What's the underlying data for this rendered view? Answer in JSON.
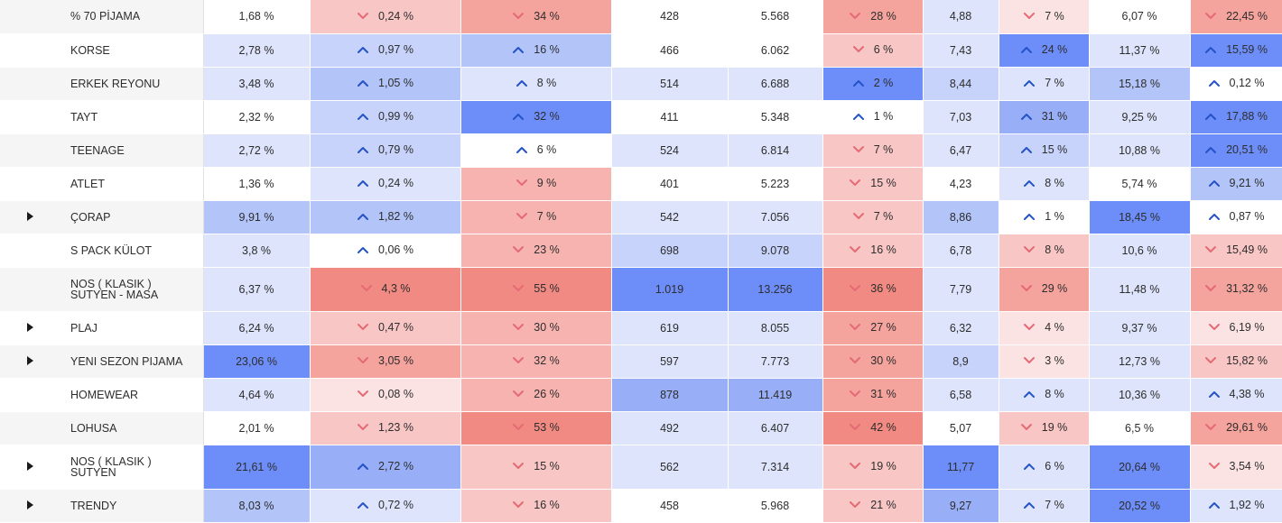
{
  "colors": {
    "up_arrow": "#2452c8",
    "down_arrow": "#e56a74",
    "blue_scale": [
      "#dde4fb",
      "#c7d3fa",
      "#b3c4f9",
      "#98aff8",
      "#6d8ef9"
    ],
    "red_scale": [
      "#fbe3e3",
      "#f8c6c5",
      "#f7b3b0",
      "#f4a39d",
      "#f08a82"
    ],
    "neutral": "#ffffff"
  },
  "icons": {
    "up": "chevron-up-icon",
    "down": "chevron-down-icon",
    "expand": "triangle-right-icon"
  },
  "rows": [
    {
      "expandable": false,
      "label": [
        "% 70 PİJAMA"
      ],
      "cells": [
        {
          "text": "1,68 %",
          "bg": "#ffffff"
        },
        {
          "text": "0,24 %",
          "dir": "down",
          "bg": "#f8c6c5"
        },
        {
          "text": "34 %",
          "dir": "down",
          "bg": "#f4a39d"
        },
        {
          "text": "428",
          "bg": "#ffffff"
        },
        {
          "text": "5.568",
          "bg": "#ffffff"
        },
        {
          "text": "28 %",
          "dir": "down",
          "bg": "#f4a39d"
        },
        {
          "text": "4,88",
          "bg": "#dde4fb"
        },
        {
          "text": "7 %",
          "dir": "down",
          "bg": "#fbe3e3"
        },
        {
          "text": "6,07 %",
          "bg": "#ffffff"
        },
        {
          "text": "22,45 %",
          "dir": "down",
          "bg": "#f4a39d"
        }
      ]
    },
    {
      "expandable": false,
      "label": [
        "KORSE"
      ],
      "cells": [
        {
          "text": "2,78 %",
          "bg": "#dde4fb"
        },
        {
          "text": "0,97 %",
          "dir": "up",
          "bg": "#c7d3fa"
        },
        {
          "text": "16 %",
          "dir": "up",
          "bg": "#b3c4f9"
        },
        {
          "text": "466",
          "bg": "#ffffff"
        },
        {
          "text": "6.062",
          "bg": "#ffffff"
        },
        {
          "text": "6 %",
          "dir": "down",
          "bg": "#f8c6c5"
        },
        {
          "text": "7,43",
          "bg": "#dde4fb"
        },
        {
          "text": "24 %",
          "dir": "up",
          "bg": "#6d8ef9"
        },
        {
          "text": "11,37 %",
          "bg": "#dde4fb"
        },
        {
          "text": "15,59 %",
          "dir": "up",
          "bg": "#6d8ef9"
        }
      ]
    },
    {
      "expandable": false,
      "label": [
        "ERKEK REYONU"
      ],
      "cells": [
        {
          "text": "3,48 %",
          "bg": "#dde4fb"
        },
        {
          "text": "1,05 %",
          "dir": "up",
          "bg": "#b3c4f9"
        },
        {
          "text": "8 %",
          "dir": "up",
          "bg": "#dde4fb"
        },
        {
          "text": "514",
          "bg": "#dde4fb"
        },
        {
          "text": "6.688",
          "bg": "#dde4fb"
        },
        {
          "text": "2 %",
          "dir": "up",
          "bg": "#6d8ef9"
        },
        {
          "text": "8,44",
          "bg": "#c7d3fa"
        },
        {
          "text": "7 %",
          "dir": "up",
          "bg": "#dde4fb"
        },
        {
          "text": "15,18 %",
          "bg": "#b3c4f9"
        },
        {
          "text": "0,12 %",
          "dir": "up",
          "bg": "#ffffff"
        }
      ]
    },
    {
      "expandable": false,
      "label": [
        "TAYT"
      ],
      "cells": [
        {
          "text": "2,32 %",
          "bg": "#ffffff"
        },
        {
          "text": "0,99 %",
          "dir": "up",
          "bg": "#c7d3fa"
        },
        {
          "text": "32 %",
          "dir": "up",
          "bg": "#6d8ef9"
        },
        {
          "text": "411",
          "bg": "#ffffff"
        },
        {
          "text": "5.348",
          "bg": "#ffffff"
        },
        {
          "text": "1 %",
          "dir": "up",
          "bg": "#ffffff"
        },
        {
          "text": "7,03",
          "bg": "#dde4fb"
        },
        {
          "text": "31 %",
          "dir": "up",
          "bg": "#98aff8"
        },
        {
          "text": "9,25 %",
          "bg": "#dde4fb"
        },
        {
          "text": "17,88 %",
          "dir": "up",
          "bg": "#6d8ef9"
        }
      ]
    },
    {
      "expandable": false,
      "label": [
        "TEENAGE"
      ],
      "cells": [
        {
          "text": "2,72 %",
          "bg": "#dde4fb"
        },
        {
          "text": "0,79 %",
          "dir": "up",
          "bg": "#c7d3fa"
        },
        {
          "text": "6 %",
          "dir": "up",
          "bg": "#ffffff"
        },
        {
          "text": "524",
          "bg": "#dde4fb"
        },
        {
          "text": "6.814",
          "bg": "#dde4fb"
        },
        {
          "text": "7 %",
          "dir": "down",
          "bg": "#f8c6c5"
        },
        {
          "text": "6,47",
          "bg": "#dde4fb"
        },
        {
          "text": "15 %",
          "dir": "up",
          "bg": "#c7d3fa"
        },
        {
          "text": "10,88 %",
          "bg": "#dde4fb"
        },
        {
          "text": "20,51 %",
          "dir": "up",
          "bg": "#6d8ef9"
        }
      ]
    },
    {
      "expandable": false,
      "label": [
        "ATLET"
      ],
      "cells": [
        {
          "text": "1,36 %",
          "bg": "#ffffff"
        },
        {
          "text": "0,24 %",
          "dir": "up",
          "bg": "#dde4fb"
        },
        {
          "text": "9 %",
          "dir": "down",
          "bg": "#f7b3b0"
        },
        {
          "text": "401",
          "bg": "#ffffff"
        },
        {
          "text": "5.223",
          "bg": "#ffffff"
        },
        {
          "text": "15 %",
          "dir": "down",
          "bg": "#f8c6c5"
        },
        {
          "text": "4,23",
          "bg": "#ffffff"
        },
        {
          "text": "8 %",
          "dir": "up",
          "bg": "#dde4fb"
        },
        {
          "text": "5,74 %",
          "bg": "#ffffff"
        },
        {
          "text": "9,21 %",
          "dir": "up",
          "bg": "#b3c4f9"
        }
      ]
    },
    {
      "expandable": true,
      "label": [
        "ÇORAP"
      ],
      "cells": [
        {
          "text": "9,91 %",
          "bg": "#b3c4f9"
        },
        {
          "text": "1,82 %",
          "dir": "up",
          "bg": "#b3c4f9"
        },
        {
          "text": "7 %",
          "dir": "down",
          "bg": "#f7b3b0"
        },
        {
          "text": "542",
          "bg": "#dde4fb"
        },
        {
          "text": "7.056",
          "bg": "#dde4fb"
        },
        {
          "text": "7 %",
          "dir": "down",
          "bg": "#f8c6c5"
        },
        {
          "text": "8,86",
          "bg": "#b3c4f9"
        },
        {
          "text": "1 %",
          "dir": "up",
          "bg": "#ffffff"
        },
        {
          "text": "18,45 %",
          "bg": "#6d8ef9"
        },
        {
          "text": "0,87 %",
          "dir": "up",
          "bg": "#ffffff"
        }
      ]
    },
    {
      "expandable": false,
      "label": [
        "S PACK KÜLOT"
      ],
      "cells": [
        {
          "text": "3,8 %",
          "bg": "#dde4fb"
        },
        {
          "text": "0,06 %",
          "dir": "up",
          "bg": "#ffffff"
        },
        {
          "text": "23 %",
          "dir": "down",
          "bg": "#f7b3b0"
        },
        {
          "text": "698",
          "bg": "#c7d3fa"
        },
        {
          "text": "9.078",
          "bg": "#c7d3fa"
        },
        {
          "text": "16 %",
          "dir": "down",
          "bg": "#f8c6c5"
        },
        {
          "text": "6,78",
          "bg": "#dde4fb"
        },
        {
          "text": "8 %",
          "dir": "down",
          "bg": "#f8c6c5"
        },
        {
          "text": "10,6 %",
          "bg": "#dde4fb"
        },
        {
          "text": "15,49 %",
          "dir": "down",
          "bg": "#f8c6c5"
        }
      ]
    },
    {
      "expandable": false,
      "label": [
        "NOS ( KLASIK )",
        "SUTYEN - MASA"
      ],
      "cells": [
        {
          "text": "6,37 %",
          "bg": "#dde4fb"
        },
        {
          "text": "4,3 %",
          "dir": "down",
          "bg": "#f08a82"
        },
        {
          "text": "55 %",
          "dir": "down",
          "bg": "#f08a82"
        },
        {
          "text": "1.019",
          "bg": "#6d8ef9"
        },
        {
          "text": "13.256",
          "bg": "#6d8ef9"
        },
        {
          "text": "36 %",
          "dir": "down",
          "bg": "#f08a82"
        },
        {
          "text": "7,79",
          "bg": "#dde4fb"
        },
        {
          "text": "29 %",
          "dir": "down",
          "bg": "#f4a39d"
        },
        {
          "text": "11,48 %",
          "bg": "#dde4fb"
        },
        {
          "text": "31,32 %",
          "dir": "down",
          "bg": "#f4a39d"
        }
      ]
    },
    {
      "expandable": true,
      "label": [
        "PLAJ"
      ],
      "cells": [
        {
          "text": "6,24 %",
          "bg": "#dde4fb"
        },
        {
          "text": "0,47 %",
          "dir": "down",
          "bg": "#f8c6c5"
        },
        {
          "text": "30 %",
          "dir": "down",
          "bg": "#f7b3b0"
        },
        {
          "text": "619",
          "bg": "#dde4fb"
        },
        {
          "text": "8.055",
          "bg": "#dde4fb"
        },
        {
          "text": "27 %",
          "dir": "down",
          "bg": "#f4a39d"
        },
        {
          "text": "6,32",
          "bg": "#dde4fb"
        },
        {
          "text": "4 %",
          "dir": "down",
          "bg": "#fbe3e3"
        },
        {
          "text": "9,37 %",
          "bg": "#dde4fb"
        },
        {
          "text": "6,19 %",
          "dir": "down",
          "bg": "#fbe3e3"
        }
      ]
    },
    {
      "expandable": true,
      "label": [
        "YENI SEZON PIJAMA"
      ],
      "cells": [
        {
          "text": "23,06 %",
          "bg": "#6d8ef9"
        },
        {
          "text": "3,05 %",
          "dir": "down",
          "bg": "#f4a39d"
        },
        {
          "text": "32 %",
          "dir": "down",
          "bg": "#f7b3b0"
        },
        {
          "text": "597",
          "bg": "#dde4fb"
        },
        {
          "text": "7.773",
          "bg": "#dde4fb"
        },
        {
          "text": "30 %",
          "dir": "down",
          "bg": "#f4a39d"
        },
        {
          "text": "8,9",
          "bg": "#c7d3fa"
        },
        {
          "text": "3 %",
          "dir": "down",
          "bg": "#fbe3e3"
        },
        {
          "text": "12,73 %",
          "bg": "#dde4fb"
        },
        {
          "text": "15,82 %",
          "dir": "down",
          "bg": "#f8c6c5"
        }
      ]
    },
    {
      "expandable": false,
      "label": [
        "HOMEWEAR"
      ],
      "cells": [
        {
          "text": "4,64 %",
          "bg": "#dde4fb"
        },
        {
          "text": "0,08 %",
          "dir": "down",
          "bg": "#fbe3e3"
        },
        {
          "text": "26 %",
          "dir": "down",
          "bg": "#f7b3b0"
        },
        {
          "text": "878",
          "bg": "#98aff8"
        },
        {
          "text": "11.419",
          "bg": "#98aff8"
        },
        {
          "text": "31 %",
          "dir": "down",
          "bg": "#f4a39d"
        },
        {
          "text": "6,58",
          "bg": "#dde4fb"
        },
        {
          "text": "8 %",
          "dir": "up",
          "bg": "#dde4fb"
        },
        {
          "text": "10,36 %",
          "bg": "#dde4fb"
        },
        {
          "text": "4,38 %",
          "dir": "up",
          "bg": "#dde4fb"
        }
      ]
    },
    {
      "expandable": false,
      "label": [
        "LOHUSA"
      ],
      "cells": [
        {
          "text": "2,01 %",
          "bg": "#ffffff"
        },
        {
          "text": "1,23 %",
          "dir": "down",
          "bg": "#f8c6c5"
        },
        {
          "text": "53 %",
          "dir": "down",
          "bg": "#f08a82"
        },
        {
          "text": "492",
          "bg": "#dde4fb"
        },
        {
          "text": "6.407",
          "bg": "#dde4fb"
        },
        {
          "text": "42 %",
          "dir": "down",
          "bg": "#f08a82"
        },
        {
          "text": "5,07",
          "bg": "#ffffff"
        },
        {
          "text": "19 %",
          "dir": "down",
          "bg": "#f8c6c5"
        },
        {
          "text": "6,5 %",
          "bg": "#ffffff"
        },
        {
          "text": "29,61 %",
          "dir": "down",
          "bg": "#f4a39d"
        }
      ]
    },
    {
      "expandable": true,
      "label": [
        "NOS ( KLASIK )",
        "SUTYEN"
      ],
      "cells": [
        {
          "text": "21,61 %",
          "bg": "#6d8ef9"
        },
        {
          "text": "2,72 %",
          "dir": "up",
          "bg": "#98aff8"
        },
        {
          "text": "15 %",
          "dir": "down",
          "bg": "#f8c6c5"
        },
        {
          "text": "562",
          "bg": "#dde4fb"
        },
        {
          "text": "7.314",
          "bg": "#dde4fb"
        },
        {
          "text": "19 %",
          "dir": "down",
          "bg": "#f8c6c5"
        },
        {
          "text": "11,77",
          "bg": "#6d8ef9"
        },
        {
          "text": "6 %",
          "dir": "up",
          "bg": "#dde4fb"
        },
        {
          "text": "20,64 %",
          "bg": "#6d8ef9"
        },
        {
          "text": "3,54 %",
          "dir": "down",
          "bg": "#fbe3e3"
        }
      ]
    },
    {
      "expandable": true,
      "label": [
        "TRENDY"
      ],
      "cells": [
        {
          "text": "8,03 %",
          "bg": "#b3c4f9"
        },
        {
          "text": "0,72 %",
          "dir": "up",
          "bg": "#dde4fb"
        },
        {
          "text": "16 %",
          "dir": "down",
          "bg": "#f8c6c5"
        },
        {
          "text": "458",
          "bg": "#ffffff"
        },
        {
          "text": "5.968",
          "bg": "#ffffff"
        },
        {
          "text": "21 %",
          "dir": "down",
          "bg": "#f8c6c5"
        },
        {
          "text": "9,27",
          "bg": "#98aff8"
        },
        {
          "text": "7 %",
          "dir": "up",
          "bg": "#dde4fb"
        },
        {
          "text": "20,52 %",
          "bg": "#6d8ef9"
        },
        {
          "text": "1,92 %",
          "dir": "up",
          "bg": "#dde4fb"
        }
      ]
    }
  ]
}
